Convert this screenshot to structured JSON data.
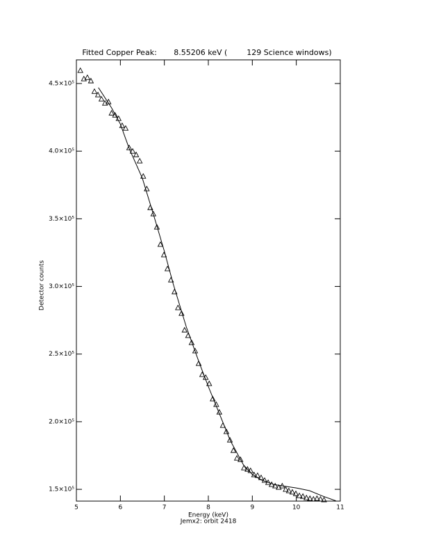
{
  "chart_data": {
    "type": "scatter",
    "title": "Fitted Copper Peak:       8.55206 keV (        129 Science windows)",
    "x_label": "Energy (keV)",
    "subtitle": "Jemx2: orbit 2418",
    "y_label": "Detector counts",
    "xlim": [
      5,
      11
    ],
    "xticks": [
      5,
      6,
      7,
      8,
      9,
      10,
      11
    ],
    "ylim": [
      141300,
      467500
    ],
    "yticks": [
      {
        "value": 150000,
        "label": "1.5×10⁵"
      },
      {
        "value": 200000,
        "label": "2.0×10⁵"
      },
      {
        "value": 250000,
        "label": "2.5×10⁵"
      },
      {
        "value": 300000,
        "label": "3.0×10⁵"
      },
      {
        "value": 350000,
        "label": "3.5×10⁵"
      },
      {
        "value": 400000,
        "label": "4.0×10⁵"
      },
      {
        "value": 450000,
        "label": "4.5×10⁵"
      }
    ],
    "series": [
      {
        "marker": "triangle",
        "color": "#000000",
        "x": [
          5.09,
          5.17,
          5.25,
          5.33,
          5.41,
          5.49,
          5.57,
          5.65,
          5.73,
          5.8,
          5.88,
          5.96,
          6.04,
          6.12,
          6.2,
          6.28,
          6.36,
          6.44,
          6.52,
          6.6,
          6.68,
          6.75,
          6.83,
          6.91,
          6.99,
          7.07,
          7.15,
          7.23,
          7.31,
          7.39,
          7.46,
          7.54,
          7.62,
          7.7,
          7.78,
          7.86,
          7.94,
          8.02,
          8.1,
          8.18,
          8.25,
          8.33,
          8.41,
          8.49,
          8.57,
          8.65,
          8.73,
          8.81,
          8.89,
          8.96,
          9.04,
          9.12,
          9.2,
          9.28,
          9.36,
          9.44,
          9.52,
          9.6,
          9.68,
          9.76,
          9.83,
          9.91,
          9.99,
          10.07,
          10.15,
          10.23,
          10.31,
          10.39,
          10.47,
          10.55,
          10.63
        ],
        "values": [
          459700,
          453500,
          454500,
          452000,
          444200,
          441700,
          438600,
          435500,
          436500,
          428200,
          426700,
          424200,
          419000,
          417000,
          402600,
          400000,
          397400,
          392800,
          381500,
          372200,
          358300,
          353700,
          343900,
          331100,
          323400,
          313100,
          304800,
          296100,
          284300,
          280100,
          267800,
          263700,
          258500,
          252400,
          243100,
          234900,
          232800,
          228200,
          216900,
          212800,
          207100,
          197300,
          192700,
          186500,
          178800,
          173100,
          172100,
          165900,
          164900,
          163900,
          160800,
          160300,
          158700,
          156700,
          155100,
          153600,
          152600,
          151500,
          152600,
          150000,
          149000,
          148000,
          146900,
          145400,
          144900,
          143800,
          143300,
          142800,
          143300,
          142800,
          142300
        ]
      },
      {
        "line": true,
        "color": "#000000",
        "x": [
          5.5,
          5.8,
          6.0,
          6.2,
          6.5,
          6.8,
          7.0,
          7.2,
          7.5,
          7.8,
          8.0,
          8.2,
          8.5,
          8.8,
          9.0,
          9.2,
          9.5,
          9.8,
          10.0,
          10.3,
          10.6,
          10.9
        ],
        "values": [
          447000,
          432000,
          420000,
          402000,
          380000,
          348000,
          326000,
          302000,
          270000,
          243000,
          226000,
          210000,
          186000,
          168000,
          161000,
          157000,
          153500,
          152000,
          151000,
          149000,
          145000,
          141500
        ]
      }
    ]
  }
}
